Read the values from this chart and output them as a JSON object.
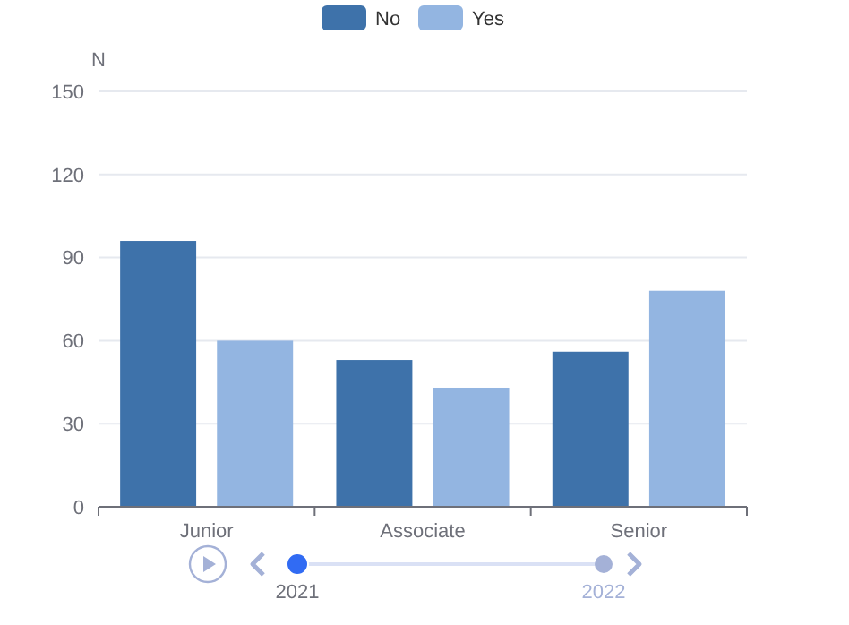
{
  "chart_data": {
    "type": "bar",
    "ylabel": "N",
    "categories": [
      "Junior",
      "Associate",
      "Senior"
    ],
    "series": [
      {
        "name": "No",
        "color": "#3e72aa",
        "values": [
          96,
          53,
          56
        ]
      },
      {
        "name": "Yes",
        "color": "#93b5e1",
        "values": [
          60,
          43,
          78
        ]
      }
    ],
    "ylim": [
      0,
      150
    ],
    "yticks": [
      0,
      30,
      60,
      90,
      120,
      150
    ],
    "grid": "y",
    "legend": "top",
    "annotations": [
      "2021",
      "2022"
    ]
  }
}
